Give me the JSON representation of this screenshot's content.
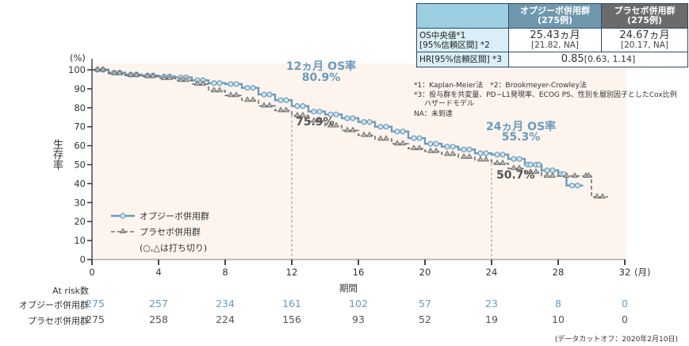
{
  "chart_data": {
    "type": "line",
    "title": "",
    "ylabel": "生存率",
    "yunit": "(%)",
    "xlabel": "期間",
    "xunit": "(月)",
    "xlim": [
      0,
      32
    ],
    "ylim": [
      0,
      100
    ],
    "xticks": [
      0,
      4,
      8,
      12,
      16,
      20,
      24,
      28,
      32
    ],
    "yticks": [
      0,
      10,
      20,
      30,
      40,
      50,
      60,
      70,
      80,
      90,
      100
    ],
    "legend_position": "bottom-left",
    "legend_note": "(○,△は打ち切り)",
    "series": [
      {
        "name": "オプジーボ併用群",
        "color": "#6a9bbb",
        "style": "solid",
        "marker": "circle",
        "x": [
          0,
          1,
          2,
          3,
          4,
          5,
          6,
          7,
          8,
          9,
          10,
          11,
          12,
          13,
          14,
          15,
          16,
          17,
          18,
          19,
          20,
          21,
          22,
          23,
          24,
          25,
          26,
          26.5,
          27,
          28,
          28.5,
          29.5
        ],
        "y": [
          100,
          98.5,
          97.5,
          97,
          96.5,
          96,
          94.5,
          93,
          92.5,
          90.5,
          87,
          84,
          80.9,
          78,
          76.5,
          74.5,
          72.5,
          70,
          67.5,
          64,
          61,
          59.5,
          58,
          56,
          55.3,
          53,
          50,
          50,
          47,
          45,
          39,
          39
        ]
      },
      {
        "name": "プラセボ併用群",
        "color": "#707070",
        "style": "dashed",
        "marker": "triangle",
        "x": [
          0,
          1,
          2,
          3,
          4,
          5,
          6,
          7,
          8,
          9,
          10,
          11,
          12,
          13,
          14,
          15,
          16,
          17,
          18,
          19,
          20,
          21,
          22,
          23,
          24,
          25,
          26,
          27,
          28,
          29.5,
          30,
          31
        ],
        "y": [
          100,
          98,
          97,
          96.5,
          95.5,
          94.5,
          92.5,
          89,
          86.5,
          84,
          81,
          78.5,
          75.9,
          73,
          70.5,
          68,
          65.5,
          63.5,
          61,
          58.5,
          57,
          55.5,
          54,
          52.5,
          50.7,
          48,
          46,
          44,
          44,
          44,
          33,
          33
        ]
      }
    ],
    "annotations": [
      {
        "label": "12ヵ月 OS率",
        "value": "80.9%",
        "series": "オプジーボ併用群",
        "x": 12
      },
      {
        "label": "",
        "value": "75.9%",
        "series": "プラセボ併用群",
        "x": 12
      },
      {
        "label": "24ヵ月 OS率",
        "value": "55.3%",
        "series": "オプジーボ併用群",
        "x": 24
      },
      {
        "label": "",
        "value": "50.7%",
        "series": "プラセボ併用群",
        "x": 24
      }
    ]
  },
  "at_risk": {
    "title": "At risk数",
    "rows": [
      {
        "group": "オプジーボ併用群",
        "values": [
          275,
          257,
          234,
          161,
          102,
          57,
          23,
          8,
          0
        ]
      },
      {
        "group": "プラセボ併用群",
        "values": [
          275,
          258,
          224,
          156,
          93,
          52,
          19,
          10,
          0
        ]
      }
    ]
  },
  "stats_table": {
    "headers": [
      "",
      "オプジーボ併用群",
      "プラセボ併用群"
    ],
    "header_sub": [
      "",
      "(275例)",
      "(275例)"
    ],
    "median_label": "OS中央値*1",
    "median_label2": "[95%信頼区間] *2",
    "median_values": [
      "25.43ヵ月",
      "24.67ヵ月"
    ],
    "median_ci": [
      "[21.82, NA]",
      "[20.17, NA]"
    ],
    "hr_label": "HR[95%信頼区間] *3",
    "hr_value": "0.85",
    "hr_ci": "[0.63, 1.14]"
  },
  "footnotes": [
    "*1：Kaplan-Meier法　*2：Brookmeyer-Crowley法",
    "*3：投与群を共変量、PD−L1発現率、ECOG PS、性別を層別因子としたCox比例",
    "ハザードモデル",
    "NA：未到達"
  ],
  "data_cutoff": "(データカットオフ：2020年2月10日)"
}
